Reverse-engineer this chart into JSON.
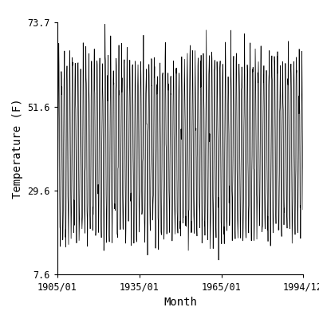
{
  "title": "",
  "xlabel": "Month",
  "ylabel": "Temperature (F)",
  "x_start_year": 1905,
  "x_start_month": 1,
  "x_end_year": 1994,
  "x_end_month": 12,
  "ylim": [
    7.6,
    73.7
  ],
  "yticks": [
    7.6,
    29.6,
    51.6,
    73.7
  ],
  "xtick_labels": [
    "1905/01",
    "1935/01",
    "1965/01",
    "1994/12"
  ],
  "xtick_years": [
    1905,
    1935,
    1965,
    1994
  ],
  "xtick_months": [
    1,
    1,
    1,
    12
  ],
  "line_color": "#000000",
  "line_width": 0.5,
  "background_color": "#ffffff",
  "mean_temp": 40.65,
  "amplitude": 22.0,
  "noise_std": 3.5,
  "seed": 42
}
